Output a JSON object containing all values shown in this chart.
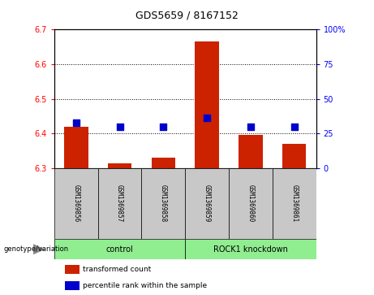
{
  "title": "GDS5659 / 8167152",
  "samples": [
    "GSM1369856",
    "GSM1369857",
    "GSM1369858",
    "GSM1369859",
    "GSM1369860",
    "GSM1369861"
  ],
  "bar_values": [
    6.42,
    6.315,
    6.33,
    6.665,
    6.395,
    6.37
  ],
  "bar_bottom": 6.3,
  "percentile_values": [
    33,
    30,
    30,
    36,
    30,
    30
  ],
  "ylim": [
    6.3,
    6.7
  ],
  "yticks": [
    6.3,
    6.4,
    6.5,
    6.6,
    6.7
  ],
  "right_yticks": [
    0,
    25,
    50,
    75,
    100
  ],
  "bar_color": "#cc2200",
  "dot_color": "#0000cc",
  "gray_bg": "#c8c8c8",
  "green_bg": "#90ee90",
  "legend_bar": "transformed count",
  "legend_dot": "percentile rank within the sample",
  "bar_width": 0.55,
  "dot_size": 30,
  "title_fontsize": 9,
  "tick_fontsize": 7,
  "label_fontsize": 5.5,
  "group_fontsize": 7,
  "legend_fontsize": 6.5
}
